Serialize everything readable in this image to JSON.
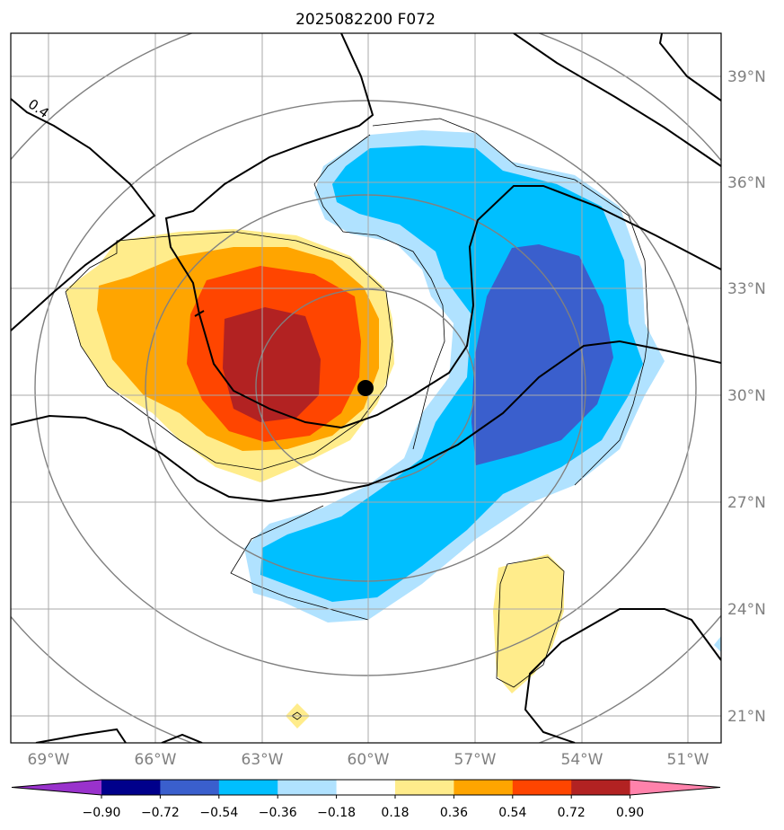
{
  "title": "2025082200 F072",
  "lon_labels": [
    "69°W",
    "66°W",
    "63°W",
    "60°W",
    "57°W",
    "54°W",
    "51°W"
  ],
  "lat_labels": [
    "39°N",
    "36°N",
    "33°N",
    "30°N",
    "27°N",
    "24°N",
    "21°N"
  ],
  "contour_label": "0.4",
  "colorbar": {
    "ticks": [
      "−0.90",
      "−0.72",
      "−0.54",
      "−0.36",
      "−0.18",
      "0.18",
      "0.36",
      "0.54",
      "0.72",
      "0.90"
    ],
    "colors": [
      "#9932cc",
      "#00008b",
      "#3a5fcd",
      "#00bfff",
      "#b0e2ff",
      "#ffffff",
      "#ffec8b",
      "#ffa500",
      "#ff4500",
      "#b22222",
      "#ff82ab"
    ]
  },
  "storm_center": "60°W 30.2°N"
}
